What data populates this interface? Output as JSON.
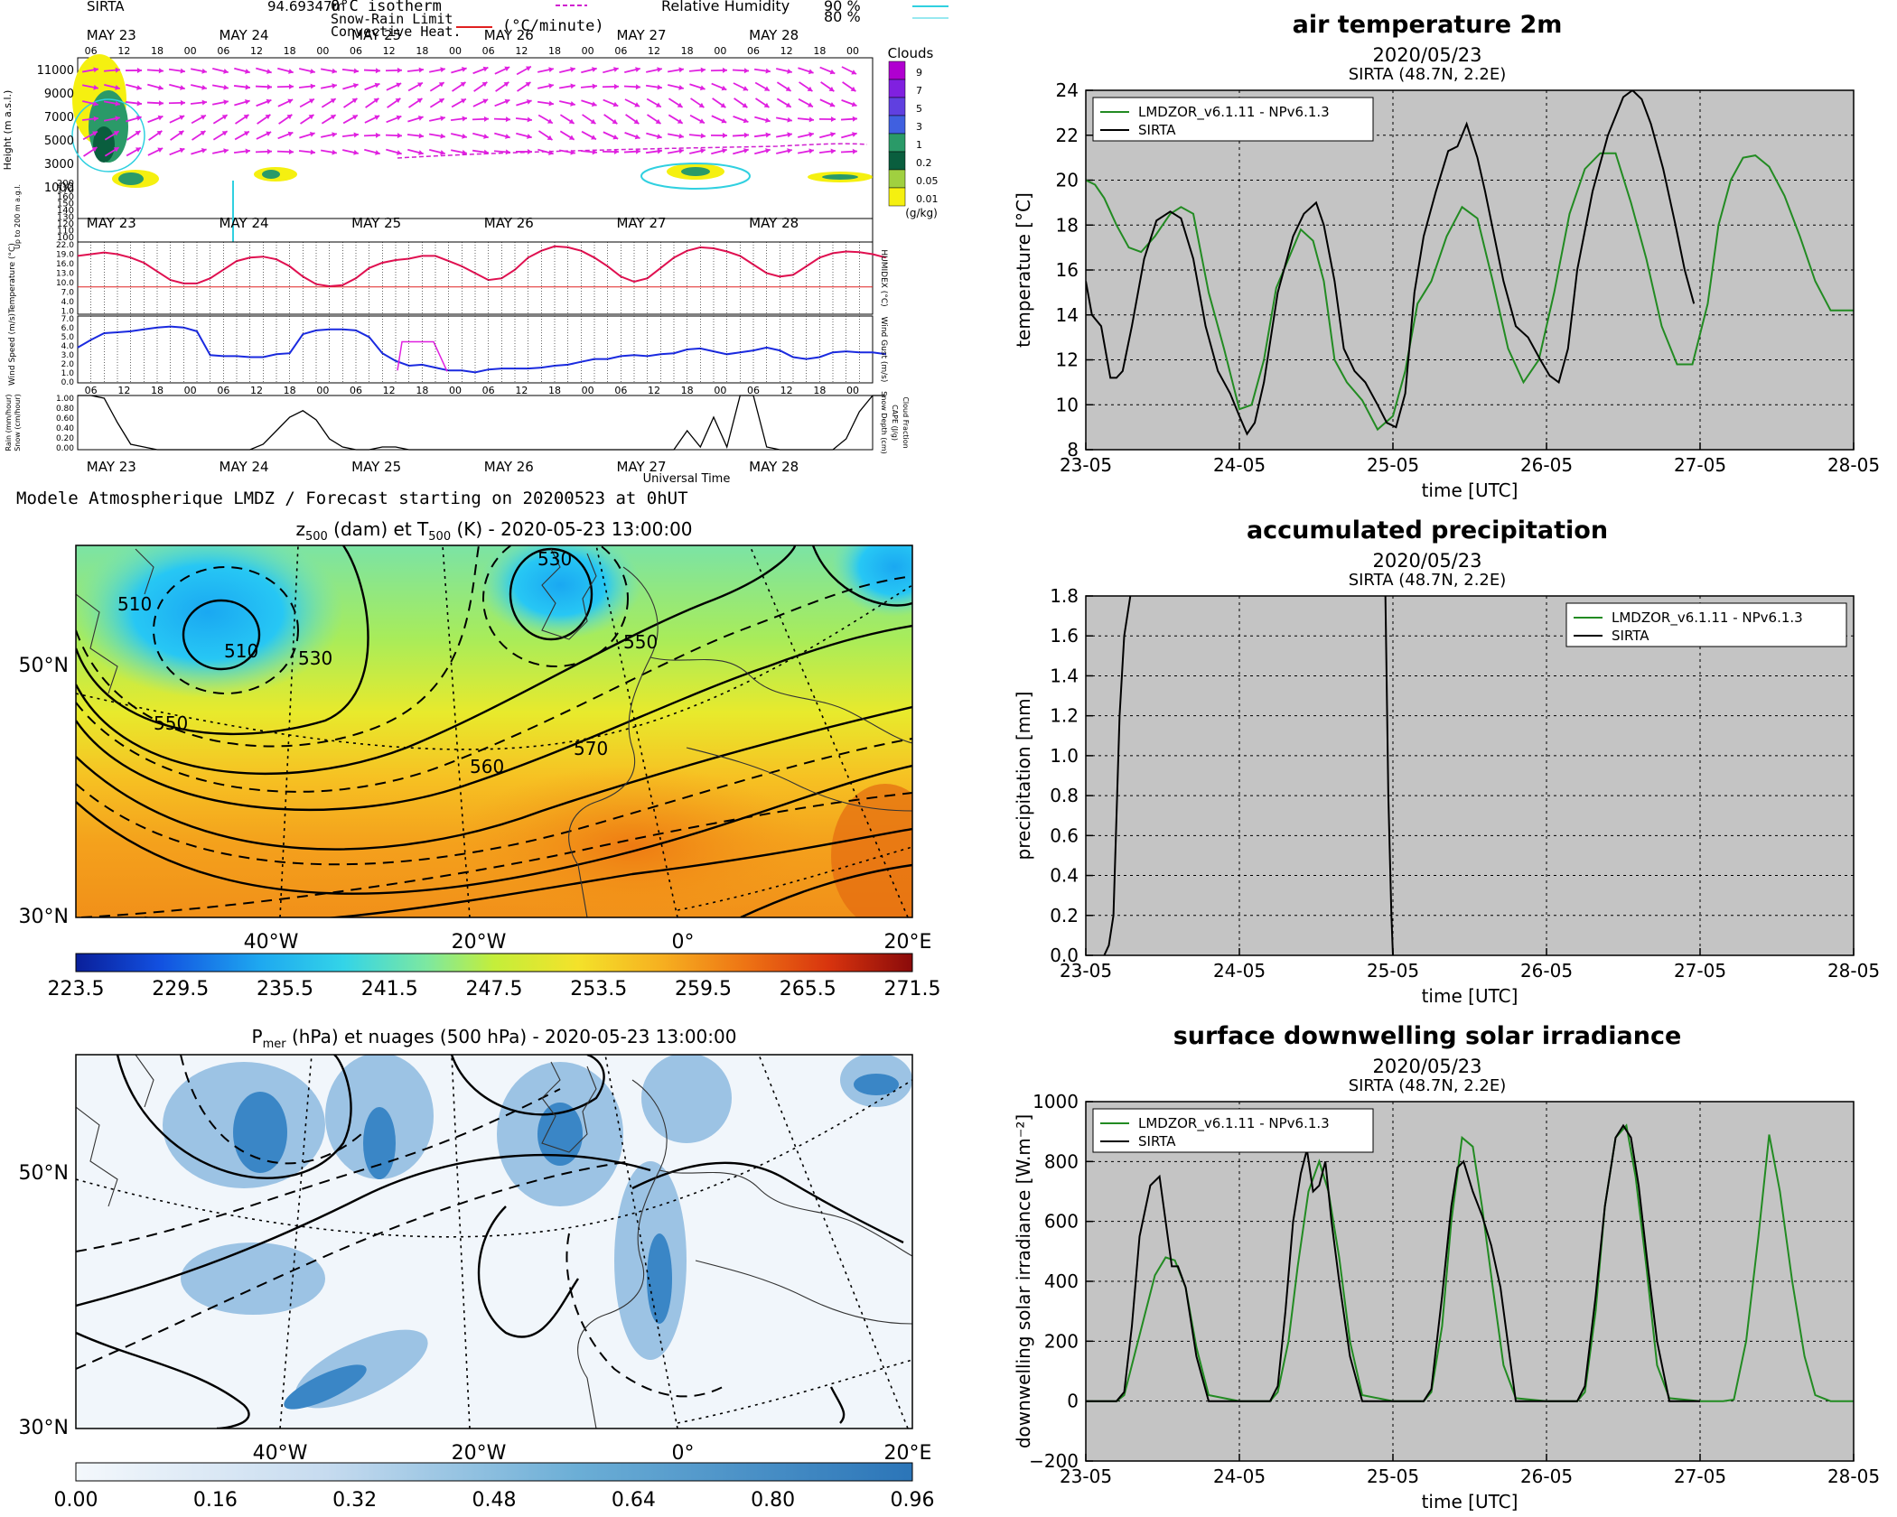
{
  "meteogram": {
    "station": "SIRTA",
    "station_height": "94.69347m",
    "legend": {
      "isotherm": "0°C isotherm",
      "snow_rain": "Snow-Rain Limit",
      "convective": "Convective Heat.",
      "conv_unit": "(°C/minute)",
      "rh_label": "Relative Humidity",
      "rh_90": "90 %",
      "rh_80": "80 %"
    },
    "days": [
      "MAY 23",
      "MAY 24",
      "MAY 25",
      "MAY 26",
      "MAY 27",
      "MAY 28"
    ],
    "hours": [
      "06",
      "12",
      "18",
      "00"
    ],
    "clouds_title": "Clouds",
    "clouds_unit": "(g/kg)",
    "clouds_levels": [
      "9",
      "7",
      "5",
      "3",
      "1",
      "0.2",
      "0.05",
      "0.01"
    ],
    "height_label": "Height (m a.s.l.)",
    "height_ticks": [
      "11000",
      "9000",
      "7000",
      "5000",
      "3000",
      "1000"
    ],
    "low_label": "Up to 200 m a.g.l.",
    "low_ticks": [
      "200",
      "170",
      "160",
      "150",
      "140",
      "130",
      "120",
      "110",
      "100"
    ],
    "temp_label": "Temperature (°C)",
    "humidex_label": "HUMIDEX (°C)",
    "temp_ticks": [
      "22.0",
      "19.0",
      "16.0",
      "13.0",
      "10.0",
      "7.0",
      "4.0",
      "1.0"
    ],
    "wind_label": "Wind Speed (m/s)",
    "gust_label": "Wind Gust (m/s)",
    "wind_ticks": [
      "7.0",
      "6.0",
      "5.0",
      "4.0",
      "3.0",
      "2.0",
      "1.0",
      "0.0"
    ],
    "rain_label": "Rain (mm/hour)",
    "snow_label": "Snow (cm/hour)",
    "snowdepth_label": "Snow Depth (cm)",
    "cape_label": "CAPE (J/g)",
    "cloudfrac_label": "Cloud Fraction",
    "rain_ticks": [
      "1.00",
      "0.80",
      "0.60",
      "0.40",
      "0.20",
      "0.00"
    ],
    "xaxis_label": "Universal Time",
    "footer": "Modele Atmospherique LMDZ / Forecast starting on 20200523 at 0hUT",
    "temp_curve": [
      19,
      19.5,
      20,
      19.5,
      18.5,
      17,
      14.5,
      12,
      11,
      11,
      12.5,
      15,
      17.5,
      18.5,
      18.8,
      18,
      16,
      13,
      10.8,
      10.2,
      10.5,
      12.5,
      15.5,
      17,
      17.8,
      18.2,
      19,
      19,
      17.5,
      16,
      14,
      12,
      12.5,
      15,
      18.5,
      20.5,
      21.8,
      21.5,
      20.5,
      18.5,
      16,
      13,
      11.5,
      12.5,
      15.5,
      18.5,
      20.5,
      21.5,
      21.2,
      20.3,
      19,
      16.5,
      14,
      13,
      13.5,
      16,
      18.5,
      19.8,
      20.3,
      20.1,
      19.5,
      18.5
    ],
    "wind_curve": [
      3.7,
      4.5,
      5.2,
      5.3,
      5.4,
      5.6,
      5.8,
      5.9,
      5.8,
      5.4,
      2.9,
      2.8,
      2.8,
      2.7,
      2.7,
      3.0,
      3.1,
      5.1,
      5.5,
      5.6,
      5.6,
      5.5,
      4.8,
      3.1,
      2.3,
      1.8,
      1.9,
      1.6,
      1.3,
      1.3,
      1.1,
      1.4,
      1.5,
      1.5,
      1.5,
      1.6,
      1.8,
      1.9,
      2.2,
      2.5,
      2.5,
      2.8,
      2.9,
      2.8,
      3.0,
      3.1,
      3.5,
      3.6,
      3.3,
      3.0,
      3.2,
      3.4,
      3.7,
      3.4,
      2.7,
      2.5,
      2.7,
      3.2,
      3.3,
      3.2,
      3.2,
      3.0
    ],
    "cloud_frac_curve": [
      1.0,
      1.0,
      0.95,
      0.5,
      0.1,
      0.05,
      0.0,
      0.0,
      0.0,
      0.0,
      0.0,
      0.0,
      0.0,
      0.0,
      0.1,
      0.35,
      0.6,
      0.72,
      0.55,
      0.2,
      0.05,
      0.0,
      0.0,
      0.05,
      0.05,
      0.0,
      0.0,
      0.0,
      0.0,
      0.0,
      0.0,
      0.0,
      0.0,
      0.0,
      0.0,
      0.0,
      0.0,
      0.0,
      0.0,
      0.0,
      0.0,
      0.0,
      0.0,
      0.0,
      0.0,
      0.0,
      0.35,
      0.05,
      0.6,
      0.05,
      1.0,
      1.0,
      0.05,
      0.0,
      0.0,
      0.0,
      0.0,
      0.0,
      0.2,
      0.7,
      1.0,
      1.0
    ]
  },
  "maps": {
    "z500": {
      "title_prefix": "z",
      "title_sub1": "500",
      "title_mid": " (dam) et T",
      "title_sub2": "500",
      "title_suffix": " (K) - 2020-05-23 13:00:00",
      "lat_labels": [
        "50°N",
        "30°N"
      ],
      "lon_labels": [
        "40°W",
        "20°W",
        "0°",
        "20°E"
      ],
      "contour_labels": [
        "510",
        "530",
        "550",
        "560",
        "570",
        "530",
        "510",
        "550"
      ],
      "colorbar_ticks": [
        "223.5",
        "229.5",
        "235.5",
        "241.5",
        "247.5",
        "253.5",
        "259.5",
        "265.5",
        "271.5"
      ]
    },
    "pmer": {
      "title_prefix": "P",
      "title_sub1": "mer",
      "title_suffix": " (hPa) et nuages (500 hPa) - 2020-05-23 13:00:00",
      "lat_labels": [
        "50°N",
        "30°N"
      ],
      "lon_labels": [
        "40°W",
        "20°W",
        "0°",
        "20°E"
      ],
      "colorbar_ticks": [
        "0.00",
        "0.16",
        "0.32",
        "0.48",
        "0.64",
        "0.80",
        "0.96"
      ]
    }
  },
  "chart_data": [
    {
      "type": "line",
      "title": "air temperature 2m",
      "subtitle": "2020/05/23",
      "subtitle2": "SIRTA (48.7N, 2.2E)",
      "xlabel": "time [UTC]",
      "ylabel": "temperature [°C]",
      "xlim": [
        0,
        5
      ],
      "ylim": [
        8,
        24
      ],
      "yticks": [
        "8",
        "10",
        "12",
        "14",
        "16",
        "18",
        "20",
        "22",
        "24"
      ],
      "xtick_labels": [
        "23-05",
        "24-05",
        "25-05",
        "26-05",
        "27-05",
        "28-05"
      ],
      "grid": true,
      "legend": "top-left",
      "series": [
        {
          "name": "LMDZOR_v6.1.11 - NPv6.1.3",
          "color": "#228b22",
          "x": [
            0,
            0.06,
            0.12,
            0.2,
            0.28,
            0.36,
            0.45,
            0.55,
            0.62,
            0.7,
            0.8,
            0.9,
            1.0,
            1.08,
            1.16,
            1.24,
            1.32,
            1.4,
            1.48,
            1.55,
            1.62,
            1.7,
            1.8,
            1.9,
            2.0,
            2.08,
            2.16,
            2.25,
            2.35,
            2.45,
            2.55,
            2.65,
            2.75,
            2.85,
            2.95,
            3.05,
            3.15,
            3.25,
            3.35,
            3.45,
            3.55,
            3.65,
            3.75,
            3.85,
            3.95,
            4.05,
            4.12,
            4.2,
            4.28,
            4.36,
            4.45,
            4.55,
            4.65,
            4.75,
            4.85,
            4.95,
            5.0
          ],
          "y": [
            20,
            19.8,
            19.2,
            18,
            17,
            16.8,
            17.5,
            18.5,
            18.8,
            18.5,
            15,
            12.5,
            9.8,
            10,
            12,
            15.2,
            16.5,
            17.8,
            17.3,
            15.5,
            12,
            11,
            10.2,
            8.9,
            9.5,
            11.5,
            14.5,
            15.5,
            17.5,
            18.8,
            18.3,
            15.5,
            12.5,
            11,
            12,
            15,
            18.5,
            20.5,
            21.2,
            21.2,
            19,
            16.5,
            13.5,
            11.8,
            11.8,
            14.5,
            18,
            20,
            21,
            21.1,
            20.6,
            19.3,
            17.5,
            15.5,
            14.2,
            14.2,
            14.2
          ]
        },
        {
          "name": "SIRTA",
          "color": "#000000",
          "x": [
            0,
            0.04,
            0.1,
            0.16,
            0.2,
            0.24,
            0.3,
            0.38,
            0.46,
            0.55,
            0.62,
            0.7,
            0.78,
            0.86,
            0.94,
            1.0,
            1.05,
            1.1,
            1.16,
            1.25,
            1.35,
            1.42,
            1.5,
            1.55,
            1.62,
            1.68,
            1.75,
            1.82,
            1.9,
            1.96,
            2.02,
            2.08,
            2.14,
            2.2,
            2.28,
            2.36,
            2.42,
            2.48,
            2.55,
            2.6,
            2.66,
            2.72,
            2.8,
            2.88,
            2.96,
            3.02,
            3.08,
            3.14,
            3.2,
            3.3,
            3.4,
            3.5,
            3.56,
            3.62,
            3.68,
            3.76,
            3.84,
            3.9,
            3.96
          ],
          "y": [
            15.5,
            14,
            13.5,
            11.2,
            11.2,
            11.5,
            13.5,
            16.5,
            18.2,
            18.6,
            18.3,
            16.5,
            13.5,
            11.5,
            10.5,
            9.5,
            8.7,
            9.2,
            11,
            15,
            17.5,
            18.5,
            19,
            18,
            15.5,
            12.5,
            11.5,
            11,
            10,
            9.2,
            9,
            10.5,
            15,
            17.5,
            19.5,
            21.3,
            21.5,
            22.5,
            21,
            19.5,
            17.5,
            15.5,
            13.5,
            13,
            12,
            11.3,
            11,
            12.5,
            16,
            19.5,
            22,
            23.7,
            24,
            23.6,
            22.5,
            20.5,
            18,
            16,
            14.5
          ]
        }
      ]
    },
    {
      "type": "line",
      "title": "accumulated precipitation",
      "subtitle": "2020/05/23",
      "subtitle2": "SIRTA (48.7N, 2.2E)",
      "xlabel": "time [UTC]",
      "ylabel": "precipitation [mm]",
      "xlim": [
        0,
        5
      ],
      "ylim": [
        0,
        1.8
      ],
      "yticks": [
        "0.0",
        "0.2",
        "0.4",
        "0.6",
        "0.8",
        "1.0",
        "1.2",
        "1.4",
        "1.6",
        "1.8"
      ],
      "xtick_labels": [
        "23-05",
        "24-05",
        "25-05",
        "26-05",
        "27-05",
        "28-05"
      ],
      "grid": true,
      "legend": "top-right",
      "series": [
        {
          "name": "LMDZOR_v6.1.11 - NPv6.1.3",
          "color": "#228b22",
          "x": [],
          "y": []
        },
        {
          "name": "SIRTA",
          "color": "#000000",
          "x": [
            0.12,
            0.15,
            0.18,
            0.22,
            0.25,
            0.28,
            0.3,
            1.95,
            1.97,
            1.99,
            2.0
          ],
          "y": [
            0.0,
            0.05,
            0.2,
            1.2,
            1.6,
            1.75,
            1.85,
            1.85,
            0.8,
            0.2,
            0.0
          ]
        }
      ]
    },
    {
      "type": "line",
      "title": "surface downwelling solar irradiance",
      "subtitle": "2020/05/23",
      "subtitle2": "SIRTA (48.7N, 2.2E)",
      "xlabel": "time [UTC]",
      "ylabel": "downwelling solar irradiance [W.m⁻²]",
      "xlim": [
        0,
        5
      ],
      "ylim": [
        -200,
        1000
      ],
      "yticks": [
        "−200",
        "0",
        "200",
        "400",
        "600",
        "800",
        "1000"
      ],
      "xtick_labels": [
        "23-05",
        "24-05",
        "25-05",
        "26-05",
        "27-05",
        "28-05"
      ],
      "grid": true,
      "legend": "top-left",
      "series": [
        {
          "name": "LMDZOR_v6.1.11 - NPv6.1.3",
          "color": "#228b22",
          "x": [
            0,
            0.2,
            0.25,
            0.3,
            0.38,
            0.45,
            0.52,
            0.58,
            0.65,
            0.72,
            0.8,
            1.0,
            1.2,
            1.25,
            1.32,
            1.38,
            1.45,
            1.52,
            1.58,
            1.65,
            1.72,
            1.8,
            2.0,
            2.2,
            2.25,
            2.32,
            2.38,
            2.45,
            2.52,
            2.58,
            2.65,
            2.72,
            2.8,
            3.0,
            3.2,
            3.25,
            3.32,
            3.38,
            3.45,
            3.52,
            3.58,
            3.65,
            3.72,
            3.8,
            4.0,
            4.15,
            4.22,
            4.3,
            4.38,
            4.45,
            4.52,
            4.6,
            4.68,
            4.75,
            4.85,
            5.0
          ],
          "y": [
            0,
            0,
            20,
            120,
            280,
            420,
            480,
            470,
            380,
            180,
            20,
            0,
            0,
            30,
            200,
            450,
            700,
            800,
            700,
            480,
            200,
            20,
            0,
            0,
            30,
            250,
            600,
            880,
            850,
            650,
            380,
            120,
            10,
            0,
            0,
            30,
            300,
            650,
            880,
            920,
            750,
            450,
            120,
            10,
            0,
            0,
            5,
            200,
            550,
            890,
            700,
            400,
            150,
            20,
            0,
            0
          ]
        },
        {
          "name": "SIRTA",
          "color": "#000000",
          "x": [
            0,
            0.2,
            0.25,
            0.3,
            0.35,
            0.42,
            0.48,
            0.52,
            0.56,
            0.6,
            0.65,
            0.72,
            0.8,
            1.0,
            1.2,
            1.25,
            1.3,
            1.35,
            1.4,
            1.44,
            1.48,
            1.52,
            1.56,
            1.6,
            1.65,
            1.72,
            1.8,
            2.0,
            2.2,
            2.25,
            2.32,
            2.38,
            2.42,
            2.46,
            2.52,
            2.58,
            2.64,
            2.7,
            2.76,
            2.8,
            3.0,
            3.2,
            3.25,
            3.32,
            3.38,
            3.45,
            3.5,
            3.55,
            3.6,
            3.66,
            3.72,
            3.8,
            4.0
          ],
          "y": [
            0,
            0,
            30,
            250,
            550,
            720,
            750,
            600,
            450,
            450,
            380,
            150,
            0,
            0,
            0,
            50,
            300,
            600,
            760,
            840,
            700,
            720,
            800,
            600,
            400,
            150,
            0,
            0,
            0,
            40,
            350,
            650,
            780,
            800,
            700,
            620,
            520,
            380,
            150,
            0,
            0,
            0,
            50,
            350,
            650,
            880,
            920,
            880,
            720,
            450,
            200,
            0,
            0
          ]
        }
      ]
    }
  ]
}
